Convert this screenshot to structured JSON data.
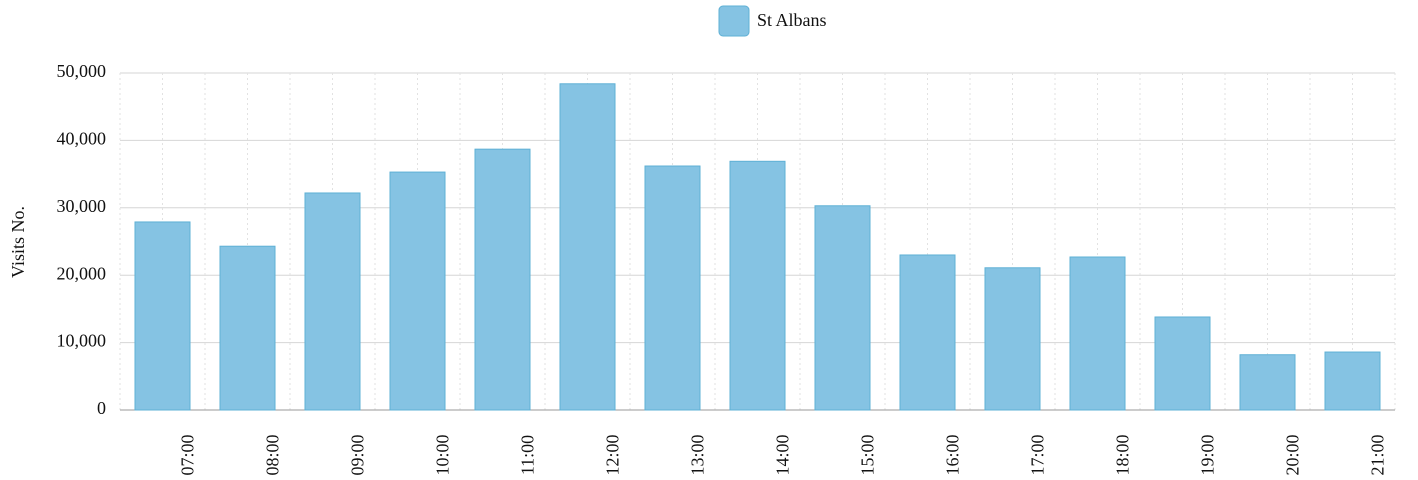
{
  "chart_data": {
    "type": "bar",
    "categories": [
      "07:00",
      "08:00",
      "09:00",
      "10:00",
      "11:00",
      "12:00",
      "13:00",
      "14:00",
      "15:00",
      "16:00",
      "17:00",
      "18:00",
      "19:00",
      "20:00",
      "21:00"
    ],
    "series": [
      {
        "name": "St Albans",
        "color": "#85c3e3",
        "values": [
          27900,
          24300,
          32200,
          35300,
          38700,
          48400,
          36200,
          36900,
          30300,
          23000,
          21100,
          22700,
          13800,
          8200,
          8600
        ]
      }
    ],
    "y_label": "Visits No.",
    "ylim": [
      0,
      50000
    ],
    "yticks": [
      0,
      {
        "value": 10000,
        "label": "10,000"
      },
      {
        "value": 20000,
        "label": "20,000"
      },
      {
        "value": 30000,
        "label": "30,000"
      },
      {
        "value": 40000,
        "label": "40,000"
      },
      {
        "value": 50000,
        "label": "50,000"
      }
    ],
    "grid": true,
    "legend": "top"
  }
}
